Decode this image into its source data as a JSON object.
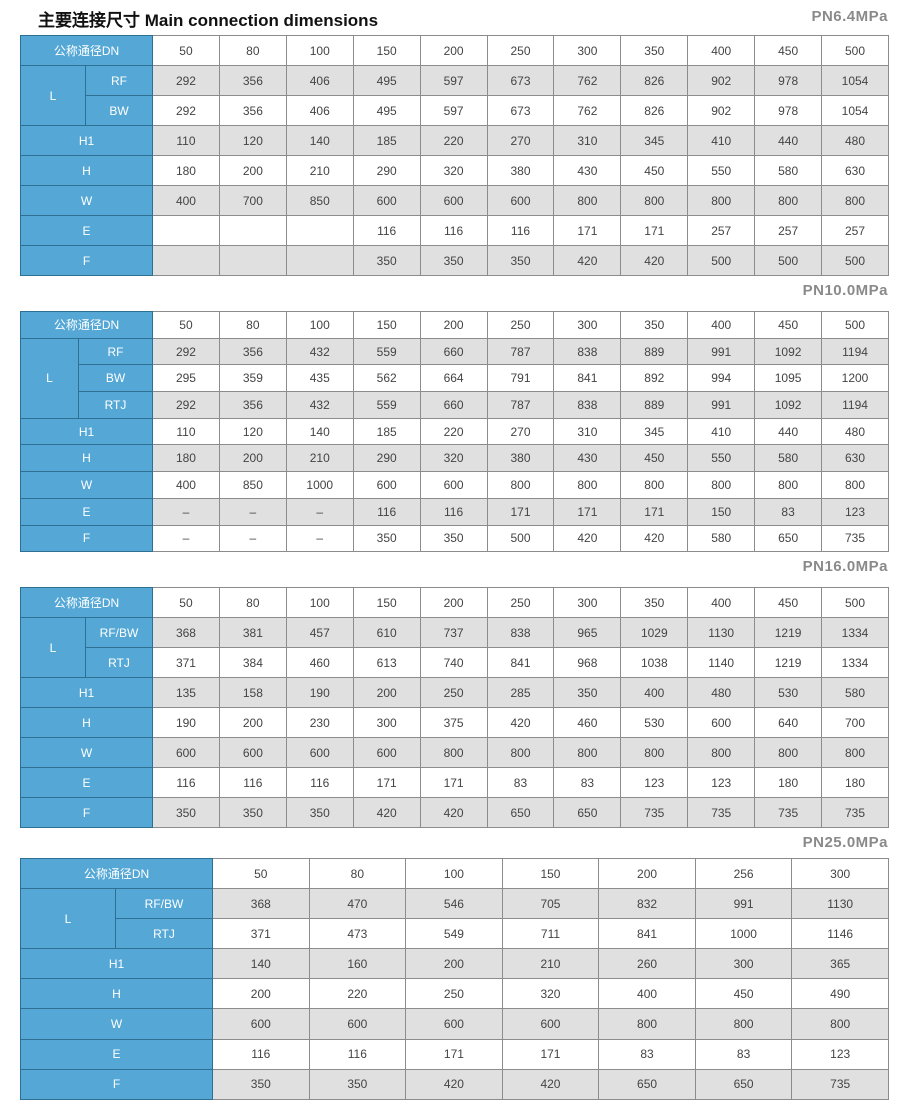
{
  "title": "主要连接尺寸 Main connection dimensions",
  "colors": {
    "label_bg": "#55a8d6",
    "shaded_row": "#e0e0e0",
    "pressure_label": "#8a8a8a"
  },
  "tables": [
    {
      "pressure": "PN6.4MPa",
      "dn_label": "公称通径DN",
      "dn": [
        "50",
        "80",
        "100",
        "150",
        "200",
        "250",
        "300",
        "350",
        "400",
        "450",
        "500"
      ],
      "L": {
        "label": "L",
        "rows": [
          {
            "sub": "RF",
            "values": [
              "292",
              "356",
              "406",
              "495",
              "597",
              "673",
              "762",
              "826",
              "902",
              "978",
              "1054"
            ]
          },
          {
            "sub": "BW",
            "values": [
              "292",
              "356",
              "406",
              "495",
              "597",
              "673",
              "762",
              "826",
              "902",
              "978",
              "1054"
            ]
          }
        ]
      },
      "rows": [
        {
          "label": "H1",
          "values": [
            "110",
            "120",
            "140",
            "185",
            "220",
            "270",
            "310",
            "345",
            "410",
            "440",
            "480"
          ]
        },
        {
          "label": "H",
          "values": [
            "180",
            "200",
            "210",
            "290",
            "320",
            "380",
            "430",
            "450",
            "550",
            "580",
            "630"
          ]
        },
        {
          "label": "W",
          "values": [
            "400",
            "700",
            "850",
            "600",
            "600",
            "600",
            "800",
            "800",
            "800",
            "800",
            "800"
          ]
        },
        {
          "label": "E",
          "values": [
            "",
            "",
            "",
            "116",
            "116",
            "116",
            "171",
            "171",
            "257",
            "257",
            "257"
          ]
        },
        {
          "label": "F",
          "values": [
            "",
            "",
            "",
            "350",
            "350",
            "350",
            "420",
            "420",
            "500",
            "500",
            "500"
          ]
        }
      ]
    },
    {
      "pressure": "PN10.0MPa",
      "dn_label": "公称通径DN",
      "dn": [
        "50",
        "80",
        "100",
        "150",
        "200",
        "250",
        "300",
        "350",
        "400",
        "450",
        "500"
      ],
      "L": {
        "label": "L",
        "rows": [
          {
            "sub": "RF",
            "values": [
              "292",
              "356",
              "432",
              "559",
              "660",
              "787",
              "838",
              "889",
              "991",
              "1092",
              "1194"
            ]
          },
          {
            "sub": "BW",
            "values": [
              "295",
              "359",
              "435",
              "562",
              "664",
              "791",
              "841",
              "892",
              "994",
              "1095",
              "1200"
            ]
          },
          {
            "sub": "RTJ",
            "values": [
              "292",
              "356",
              "432",
              "559",
              "660",
              "787",
              "838",
              "889",
              "991",
              "1092",
              "1194"
            ]
          }
        ]
      },
      "rows": [
        {
          "label": "H1",
          "values": [
            "110",
            "120",
            "140",
            "185",
            "220",
            "270",
            "310",
            "345",
            "410",
            "440",
            "480"
          ]
        },
        {
          "label": "H",
          "values": [
            "180",
            "200",
            "210",
            "290",
            "320",
            "380",
            "430",
            "450",
            "550",
            "580",
            "630"
          ]
        },
        {
          "label": "W",
          "values": [
            "400",
            "850",
            "1000",
            "600",
            "600",
            "800",
            "800",
            "800",
            "800",
            "800",
            "800"
          ]
        },
        {
          "label": "E",
          "values": [
            "–",
            "–",
            "–",
            "116",
            "116",
            "171",
            "171",
            "171",
            "150",
            "83",
            "123"
          ]
        },
        {
          "label": "F",
          "values": [
            "–",
            "–",
            "–",
            "350",
            "350",
            "500",
            "420",
            "420",
            "580",
            "650",
            "735"
          ]
        }
      ]
    },
    {
      "pressure": "PN16.0MPa",
      "dn_label": "公称通径DN",
      "dn": [
        "50",
        "80",
        "100",
        "150",
        "200",
        "250",
        "300",
        "350",
        "400",
        "450",
        "500"
      ],
      "L": {
        "label": "L",
        "rows": [
          {
            "sub": "RF/BW",
            "values": [
              "368",
              "381",
              "457",
              "610",
              "737",
              "838",
              "965",
              "1029",
              "1130",
              "1219",
              "1334"
            ]
          },
          {
            "sub": "RTJ",
            "values": [
              "371",
              "384",
              "460",
              "613",
              "740",
              "841",
              "968",
              "1038",
              "1140",
              "1219",
              "1334"
            ]
          }
        ]
      },
      "rows": [
        {
          "label": "H1",
          "values": [
            "135",
            "158",
            "190",
            "200",
            "250",
            "285",
            "350",
            "400",
            "480",
            "530",
            "580"
          ]
        },
        {
          "label": "H",
          "values": [
            "190",
            "200",
            "230",
            "300",
            "375",
            "420",
            "460",
            "530",
            "600",
            "640",
            "700"
          ]
        },
        {
          "label": "W",
          "values": [
            "600",
            "600",
            "600",
            "600",
            "800",
            "800",
            "800",
            "800",
            "800",
            "800",
            "800"
          ]
        },
        {
          "label": "E",
          "values": [
            "116",
            "116",
            "116",
            "171",
            "171",
            "83",
            "83",
            "123",
            "123",
            "180",
            "180"
          ]
        },
        {
          "label": "F",
          "values": [
            "350",
            "350",
            "350",
            "420",
            "420",
            "650",
            "650",
            "735",
            "735",
            "735",
            "735"
          ]
        }
      ]
    },
    {
      "pressure": "PN25.0MPa",
      "dn_label": "公称通径DN",
      "dn": [
        "50",
        "80",
        "100",
        "150",
        "200",
        "256",
        "300"
      ],
      "L": {
        "label": "L",
        "rows": [
          {
            "sub": "RF/BW",
            "values": [
              "368",
              "470",
              "546",
              "705",
              "832",
              "991",
              "1130"
            ]
          },
          {
            "sub": "RTJ",
            "values": [
              "371",
              "473",
              "549",
              "711",
              "841",
              "1000",
              "1146"
            ]
          }
        ]
      },
      "rows": [
        {
          "label": "H1",
          "values": [
            "140",
            "160",
            "200",
            "210",
            "260",
            "300",
            "365"
          ]
        },
        {
          "label": "H",
          "values": [
            "200",
            "220",
            "250",
            "320",
            "400",
            "450",
            "490"
          ]
        },
        {
          "label": "W",
          "values": [
            "600",
            "600",
            "600",
            "600",
            "800",
            "800",
            "800"
          ]
        },
        {
          "label": "E",
          "values": [
            "116",
            "116",
            "171",
            "171",
            "83",
            "83",
            "123"
          ]
        },
        {
          "label": "F",
          "values": [
            "350",
            "350",
            "420",
            "420",
            "650",
            "650",
            "735"
          ]
        }
      ]
    }
  ]
}
